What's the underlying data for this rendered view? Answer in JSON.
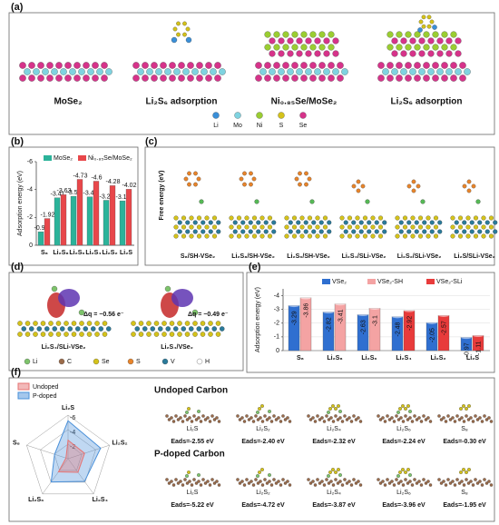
{
  "figure": {
    "panel_labels": [
      "(a)",
      "(b)",
      "(c)",
      "(d)",
      "(e)",
      "(f)"
    ],
    "a": {
      "labels": [
        "MoSe₂",
        "Li₂S₆ adsorption",
        "Ni₀.₈₅Se/MoSe₂",
        "Li₂S₆ adsorption"
      ],
      "legend": [
        "Li",
        "Mo",
        "Ni",
        "S",
        "Se"
      ]
    },
    "c": {
      "ylabel": "Free energy (eV)",
      "labels": [
        "S₈/SH-VSe₂",
        "Li₂S₈/SH-VSe₂",
        "Li₂S₆/SH-VSe₂",
        "Li₂S₄/SLi-VSe₂",
        "Li₂S₂/SLi-VSe₂",
        "Li₂S/SLi-VSe₂"
      ]
    },
    "d": {
      "labels": [
        "Li₂S₄/SLi-VSe₂",
        "Li₂S₄/VSe₂"
      ],
      "charges": [
        "Δq = −0.56 e⁻",
        "Δq = −0.49 e⁻"
      ],
      "legend": [
        "Li",
        "C",
        "Se",
        "S",
        "V",
        "H"
      ]
    },
    "f": {
      "titles": [
        "Undoped Carbon",
        "P-doped Carbon"
      ]
    }
  },
  "chart_data": [
    {
      "type": "bar",
      "ylabel": "Adsorption energy (eV)",
      "categories": [
        "S₈",
        "Li₂S₈",
        "Li₂S₆",
        "Li₂S₄",
        "Li₂S₂",
        "Li₂S"
      ],
      "series": [
        {
          "name": "MoSe₂",
          "color": "#2bb39a",
          "values": [
            -0.97,
            -3.41,
            -3.52,
            -3.48,
            -3.23,
            -3.19
          ]
        },
        {
          "name": "Ni₀.₈₅Se/MoSe₂",
          "color": "#e8474a",
          "values": [
            -1.92,
            -3.63,
            -4.73,
            -4.6,
            -4.28,
            -4.02
          ]
        }
      ],
      "ylim": [
        0,
        -6
      ],
      "yticks": [
        0,
        -2,
        -4,
        -6
      ]
    },
    {
      "type": "bar3d",
      "ylabel": "Adsorption energy (eV)",
      "categories": [
        "S₈",
        "Li₂S₈",
        "Li₂S₆",
        "Li₂S₄",
        "Li₂S₂",
        "Li₂S"
      ],
      "series": [
        {
          "name": "VSe₂",
          "color": "#2f6fd0",
          "values": [
            -3.29,
            -2.82,
            -2.63,
            -2.48,
            -2.05,
            -0.97
          ]
        },
        {
          "name": "VSe₂-SH",
          "color": "#f4a3a3",
          "values": [
            -3.86,
            -3.41,
            -3.1,
            null,
            null,
            null
          ]
        },
        {
          "name": "VSe₂-SLi",
          "color": "#e83b3b",
          "values": [
            null,
            null,
            null,
            -2.92,
            -2.57,
            -1.11
          ]
        }
      ],
      "ylim": [
        0,
        -4.5
      ],
      "yticks": [
        0,
        -1,
        -2,
        -3,
        -4
      ],
      "grid": true
    },
    {
      "type": "radar",
      "categories": [
        "Li₂S",
        "Li₂S₂",
        "Li₂S₄",
        "Li₂S₆",
        "S₈"
      ],
      "series": [
        {
          "name": "Undoped",
          "color": "#e57373",
          "values": [
            -2.55,
            -2.4,
            -2.32,
            -2.24,
            -0.3
          ],
          "value_labels": [
            "Eads=-2.55 eV",
            "Eads=-2.40 eV",
            "Eads=-2.32 eV",
            "Eads=-2.24 eV",
            "Eads=-0.30 eV"
          ]
        },
        {
          "name": "P-doped",
          "color": "#4a90d9",
          "values": [
            -5.22,
            -4.72,
            -3.87,
            -3.96,
            -1.95
          ],
          "value_labels": [
            "Eads=-5.22 eV",
            "Eads=-4.72 eV",
            "Eads=-3.87 eV",
            "Eads=-3.96 eV",
            "Eads=-1.95 eV"
          ]
        }
      ],
      "rlim": [
        0,
        -6
      ],
      "rticks": [
        -2,
        -4,
        -6
      ]
    }
  ]
}
